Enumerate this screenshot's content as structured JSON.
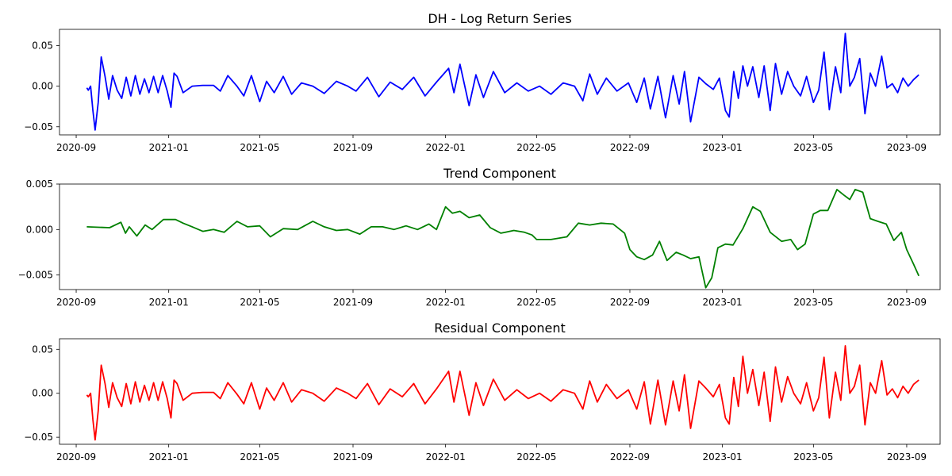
{
  "chart_data": [
    {
      "type": "line",
      "title": "DH - Log Return Series",
      "xlabel": "",
      "ylabel": "",
      "x_tick_labels": [
        "2020-09",
        "2021-01",
        "2021-05",
        "2021-09",
        "2022-01",
        "2022-05",
        "2022-09",
        "2023-01",
        "2023-05",
        "2023-09"
      ],
      "x_tick_dates": [
        "2020-09-01",
        "2021-01-01",
        "2021-05-01",
        "2021-09-01",
        "2022-01-01",
        "2022-05-01",
        "2022-09-01",
        "2023-01-01",
        "2023-05-01",
        "2023-09-01"
      ],
      "xlim": [
        "2020-08-10",
        "2023-10-15"
      ],
      "ylim": [
        -0.06,
        0.07
      ],
      "y_ticks": [
        -0.05,
        0.0,
        0.05
      ],
      "y_tick_labels": [
        "−0.05",
        "0.00",
        "0.05"
      ],
      "color": "#0000ff",
      "series": [
        {
          "x": [
            "2020-09-15",
            "2020-09-17",
            "2020-09-20",
            "2020-09-23",
            "2020-09-26",
            "2020-09-30",
            "2020-10-04",
            "2020-10-09",
            "2020-10-14",
            "2020-10-19",
            "2020-10-25",
            "2020-10-31",
            "2020-11-06",
            "2020-11-12",
            "2020-11-18",
            "2020-11-24",
            "2020-11-30",
            "2020-12-06",
            "2020-12-12",
            "2020-12-18",
            "2020-12-24",
            "2020-12-30",
            "2021-01-04",
            "2021-01-08",
            "2021-01-12",
            "2021-01-20",
            "2021-02-01",
            "2021-02-15",
            "2021-03-01",
            "2021-03-10",
            "2021-03-20",
            "2021-04-01",
            "2021-04-10",
            "2021-04-20",
            "2021-05-01",
            "2021-05-10",
            "2021-05-20",
            "2021-06-01",
            "2021-06-12",
            "2021-06-25",
            "2021-07-10",
            "2021-07-25",
            "2021-08-10",
            "2021-08-25",
            "2021-09-05",
            "2021-09-20",
            "2021-10-05",
            "2021-10-20",
            "2021-11-05",
            "2021-11-20",
            "2021-12-05",
            "2021-12-20",
            "2022-01-05",
            "2022-01-12",
            "2022-01-20",
            "2022-02-01",
            "2022-02-10",
            "2022-02-20",
            "2022-03-05",
            "2022-03-20",
            "2022-04-05",
            "2022-04-20",
            "2022-05-05",
            "2022-05-20",
            "2022-06-05",
            "2022-06-20",
            "2022-07-01",
            "2022-07-10",
            "2022-07-20",
            "2022-08-01",
            "2022-08-15",
            "2022-08-30",
            "2022-09-10",
            "2022-09-20",
            "2022-09-28",
            "2022-10-08",
            "2022-10-18",
            "2022-10-28",
            "2022-11-05",
            "2022-11-12",
            "2022-11-20",
            "2022-12-01",
            "2022-12-10",
            "2022-12-20",
            "2022-12-28",
            "2023-01-05",
            "2023-01-10",
            "2023-01-16",
            "2023-01-22",
            "2023-01-28",
            "2023-02-03",
            "2023-02-10",
            "2023-02-18",
            "2023-02-25",
            "2023-03-05",
            "2023-03-12",
            "2023-03-20",
            "2023-03-28",
            "2023-04-05",
            "2023-04-14",
            "2023-04-22",
            "2023-05-01",
            "2023-05-08",
            "2023-05-15",
            "2023-05-22",
            "2023-05-30",
            "2023-06-06",
            "2023-06-12",
            "2023-06-18",
            "2023-06-24",
            "2023-07-01",
            "2023-07-08",
            "2023-07-15",
            "2023-07-22",
            "2023-07-30",
            "2023-08-06",
            "2023-08-13",
            "2023-08-20",
            "2023-08-27",
            "2023-09-03",
            "2023-09-10",
            "2023-09-17"
          ],
          "y": [
            -0.002,
            -0.005,
            0.0,
            -0.03,
            -0.054,
            -0.02,
            0.036,
            0.012,
            -0.016,
            0.013,
            -0.005,
            -0.015,
            0.011,
            -0.012,
            0.013,
            -0.01,
            0.009,
            -0.008,
            0.012,
            -0.008,
            0.013,
            -0.006,
            -0.026,
            0.016,
            0.012,
            -0.008,
            0.0,
            0.001,
            0.001,
            -0.006,
            0.013,
            0.0,
            -0.012,
            0.013,
            -0.019,
            0.006,
            -0.008,
            0.012,
            -0.01,
            0.004,
            0.0,
            -0.009,
            0.006,
            0.0,
            -0.006,
            0.011,
            -0.013,
            0.005,
            -0.004,
            0.011,
            -0.012,
            0.005,
            0.022,
            -0.008,
            0.027,
            -0.024,
            0.014,
            -0.014,
            0.018,
            -0.008,
            0.004,
            -0.006,
            0.0,
            -0.01,
            0.004,
            0.0,
            -0.018,
            0.015,
            -0.01,
            0.01,
            -0.006,
            0.004,
            -0.02,
            0.01,
            -0.028,
            0.012,
            -0.039,
            0.013,
            -0.022,
            0.018,
            -0.044,
            0.011,
            0.003,
            -0.004,
            0.01,
            -0.03,
            -0.038,
            0.018,
            -0.015,
            0.025,
            0.0,
            0.024,
            -0.014,
            0.025,
            -0.03,
            0.028,
            -0.01,
            0.018,
            0.0,
            -0.012,
            0.012,
            -0.02,
            -0.005,
            0.042,
            -0.029,
            0.024,
            -0.008,
            0.065,
            0.0,
            0.011,
            0.034,
            -0.034,
            0.016,
            0.0,
            0.037,
            -0.002,
            0.003,
            -0.008,
            0.01,
            0.0,
            0.008,
            0.014
          ]
        }
      ]
    },
    {
      "type": "line",
      "title": "Trend Component",
      "xlabel": "",
      "ylabel": "",
      "x_tick_labels": [
        "2020-09",
        "2021-01",
        "2021-05",
        "2021-09",
        "2022-01",
        "2022-05",
        "2022-09",
        "2023-01",
        "2023-05",
        "2023-09"
      ],
      "x_tick_dates": [
        "2020-09-01",
        "2021-01-01",
        "2021-05-01",
        "2021-09-01",
        "2022-01-01",
        "2022-05-01",
        "2022-09-01",
        "2023-01-01",
        "2023-05-01",
        "2023-09-01"
      ],
      "xlim": [
        "2020-08-10",
        "2023-10-15"
      ],
      "ylim": [
        -0.0066,
        0.005
      ],
      "y_ticks": [
        -0.005,
        0.0,
        0.005
      ],
      "y_tick_labels": [
        "−0.005",
        "0.000",
        "0.005"
      ],
      "color": "#008000",
      "series": [
        {
          "x": [
            "2020-09-15",
            "2020-10-15",
            "2020-10-30",
            "2020-11-05",
            "2020-11-10",
            "2020-11-20",
            "2020-12-01",
            "2020-12-10",
            "2020-12-25",
            "2021-01-10",
            "2021-01-20",
            "2021-02-01",
            "2021-02-15",
            "2021-03-01",
            "2021-03-15",
            "2021-04-01",
            "2021-04-15",
            "2021-05-01",
            "2021-05-15",
            "2021-06-01",
            "2021-06-20",
            "2021-07-10",
            "2021-07-25",
            "2021-08-10",
            "2021-08-25",
            "2021-09-10",
            "2021-09-25",
            "2021-10-10",
            "2021-10-25",
            "2021-11-10",
            "2021-11-25",
            "2021-12-10",
            "2021-12-20",
            "2022-01-01",
            "2022-01-10",
            "2022-01-20",
            "2022-02-01",
            "2022-02-15",
            "2022-03-01",
            "2022-03-15",
            "2022-04-01",
            "2022-04-15",
            "2022-04-25",
            "2022-05-01",
            "2022-05-20",
            "2022-06-10",
            "2022-06-25",
            "2022-07-10",
            "2022-07-25",
            "2022-08-10",
            "2022-08-25",
            "2022-09-01",
            "2022-09-10",
            "2022-09-20",
            "2022-10-01",
            "2022-10-10",
            "2022-10-20",
            "2022-11-01",
            "2022-11-10",
            "2022-11-20",
            "2022-12-01",
            "2022-12-10",
            "2022-12-18",
            "2022-12-26",
            "2023-01-05",
            "2023-01-15",
            "2023-01-28",
            "2023-02-10",
            "2023-02-20",
            "2023-03-05",
            "2023-03-20",
            "2023-04-01",
            "2023-04-10",
            "2023-04-20",
            "2023-05-01",
            "2023-05-10",
            "2023-05-20",
            "2023-06-01",
            "2023-06-10",
            "2023-06-18",
            "2023-06-25",
            "2023-07-05",
            "2023-07-15",
            "2023-07-25",
            "2023-08-05",
            "2023-08-15",
            "2023-08-25",
            "2023-09-01",
            "2023-09-10",
            "2023-09-17"
          ],
          "y": [
            0.0003,
            0.0002,
            0.0008,
            -0.0004,
            0.0003,
            -0.0007,
            0.0005,
            0.0,
            0.0011,
            0.0011,
            0.0007,
            0.0003,
            -0.0002,
            0.0,
            -0.0003,
            0.0009,
            0.0003,
            0.0004,
            -0.0008,
            0.0001,
            0.0,
            0.0009,
            0.0003,
            -0.0001,
            0.0,
            -0.0005,
            0.0003,
            0.0003,
            0.0,
            0.0004,
            0.0,
            0.0006,
            0.0,
            0.0025,
            0.0018,
            0.002,
            0.0013,
            0.0016,
            0.0002,
            -0.0004,
            -0.0001,
            -0.0003,
            -0.0006,
            -0.0011,
            -0.0011,
            -0.0008,
            0.0007,
            0.0005,
            0.0007,
            0.0006,
            -0.0004,
            -0.0022,
            -0.003,
            -0.0033,
            -0.0028,
            -0.0013,
            -0.0034,
            -0.0025,
            -0.0028,
            -0.0032,
            -0.003,
            -0.0064,
            -0.0053,
            -0.002,
            -0.0016,
            -0.0017,
            0.0001,
            0.0025,
            0.002,
            -0.0003,
            -0.0013,
            -0.0011,
            -0.0022,
            -0.0016,
            0.0017,
            0.0021,
            0.0021,
            0.0044,
            0.0038,
            0.0033,
            0.0044,
            0.0041,
            0.0012,
            0.0009,
            0.0006,
            -0.0012,
            -0.0003,
            -0.0022,
            -0.0038,
            -0.0051
          ]
        }
      ]
    },
    {
      "type": "line",
      "title": "Residual Component",
      "xlabel": "",
      "ylabel": "",
      "x_tick_labels": [
        "2020-09",
        "2021-01",
        "2021-05",
        "2021-09",
        "2022-01",
        "2022-05",
        "2022-09",
        "2023-01",
        "2023-05",
        "2023-09"
      ],
      "x_tick_dates": [
        "2020-09-01",
        "2021-01-01",
        "2021-05-01",
        "2021-09-01",
        "2022-01-01",
        "2022-05-01",
        "2022-09-01",
        "2023-01-01",
        "2023-05-01",
        "2023-09-01"
      ],
      "xlim": [
        "2020-08-10",
        "2023-10-15"
      ],
      "ylim": [
        -0.058,
        0.062
      ],
      "y_ticks": [
        -0.05,
        0.0,
        0.05
      ],
      "y_tick_labels": [
        "−0.05",
        "0.00",
        "0.05"
      ],
      "color": "#ff0000",
      "series": [
        {
          "x": [
            "2020-09-15",
            "2020-09-17",
            "2020-09-20",
            "2020-09-23",
            "2020-09-26",
            "2020-09-30",
            "2020-10-04",
            "2020-10-09",
            "2020-10-14",
            "2020-10-19",
            "2020-10-25",
            "2020-10-31",
            "2020-11-06",
            "2020-11-12",
            "2020-11-18",
            "2020-11-24",
            "2020-11-30",
            "2020-12-06",
            "2020-12-12",
            "2020-12-18",
            "2020-12-24",
            "2020-12-30",
            "2021-01-04",
            "2021-01-08",
            "2021-01-12",
            "2021-01-20",
            "2021-02-01",
            "2021-02-15",
            "2021-03-01",
            "2021-03-10",
            "2021-03-20",
            "2021-04-01",
            "2021-04-10",
            "2021-04-20",
            "2021-05-01",
            "2021-05-10",
            "2021-05-20",
            "2021-06-01",
            "2021-06-12",
            "2021-06-25",
            "2021-07-10",
            "2021-07-25",
            "2021-08-10",
            "2021-08-25",
            "2021-09-05",
            "2021-09-20",
            "2021-10-05",
            "2021-10-20",
            "2021-11-05",
            "2021-11-20",
            "2021-12-05",
            "2021-12-20",
            "2022-01-05",
            "2022-01-12",
            "2022-01-20",
            "2022-02-01",
            "2022-02-10",
            "2022-02-20",
            "2022-03-05",
            "2022-03-20",
            "2022-04-05",
            "2022-04-20",
            "2022-05-05",
            "2022-05-20",
            "2022-06-05",
            "2022-06-20",
            "2022-07-01",
            "2022-07-10",
            "2022-07-20",
            "2022-08-01",
            "2022-08-15",
            "2022-08-30",
            "2022-09-10",
            "2022-09-20",
            "2022-09-28",
            "2022-10-08",
            "2022-10-18",
            "2022-10-28",
            "2022-11-05",
            "2022-11-12",
            "2022-11-20",
            "2022-12-01",
            "2022-12-10",
            "2022-12-20",
            "2022-12-28",
            "2023-01-05",
            "2023-01-10",
            "2023-01-16",
            "2023-01-22",
            "2023-01-28",
            "2023-02-03",
            "2023-02-10",
            "2023-02-18",
            "2023-02-25",
            "2023-03-05",
            "2023-03-12",
            "2023-03-20",
            "2023-03-28",
            "2023-04-05",
            "2023-04-14",
            "2023-04-22",
            "2023-05-01",
            "2023-05-08",
            "2023-05-15",
            "2023-05-22",
            "2023-05-30",
            "2023-06-06",
            "2023-06-12",
            "2023-06-18",
            "2023-06-24",
            "2023-07-01",
            "2023-07-08",
            "2023-07-15",
            "2023-07-22",
            "2023-07-30",
            "2023-08-06",
            "2023-08-13",
            "2023-08-20",
            "2023-08-27",
            "2023-09-03",
            "2023-09-10",
            "2023-09-17"
          ],
          "y": [
            -0.002,
            -0.004,
            0.0,
            -0.03,
            -0.053,
            -0.02,
            0.032,
            0.011,
            -0.016,
            0.012,
            -0.005,
            -0.015,
            0.011,
            -0.012,
            0.013,
            -0.01,
            0.009,
            -0.008,
            0.012,
            -0.008,
            0.013,
            -0.006,
            -0.028,
            0.015,
            0.011,
            -0.008,
            0.0,
            0.001,
            0.001,
            -0.006,
            0.012,
            -0.001,
            -0.012,
            0.012,
            -0.018,
            0.006,
            -0.008,
            0.012,
            -0.01,
            0.004,
            0.0,
            -0.009,
            0.006,
            0.0,
            -0.006,
            0.011,
            -0.013,
            0.005,
            -0.004,
            0.011,
            -0.012,
            0.005,
            0.025,
            -0.01,
            0.025,
            -0.025,
            0.012,
            -0.014,
            0.016,
            -0.008,
            0.004,
            -0.006,
            0.0,
            -0.009,
            0.004,
            0.0,
            -0.018,
            0.014,
            -0.01,
            0.01,
            -0.006,
            0.004,
            -0.018,
            0.013,
            -0.035,
            0.015,
            -0.036,
            0.014,
            -0.02,
            0.021,
            -0.04,
            0.014,
            0.006,
            -0.004,
            0.01,
            -0.028,
            -0.035,
            0.018,
            -0.015,
            0.042,
            0.0,
            0.027,
            -0.014,
            0.024,
            -0.032,
            0.03,
            -0.01,
            0.019,
            0.0,
            -0.012,
            0.012,
            -0.02,
            -0.005,
            0.041,
            -0.028,
            0.024,
            -0.008,
            0.054,
            0.0,
            0.008,
            0.032,
            -0.036,
            0.012,
            0.0,
            0.037,
            -0.002,
            0.005,
            -0.005,
            0.008,
            0.0,
            0.01,
            0.015
          ]
        }
      ]
    }
  ]
}
